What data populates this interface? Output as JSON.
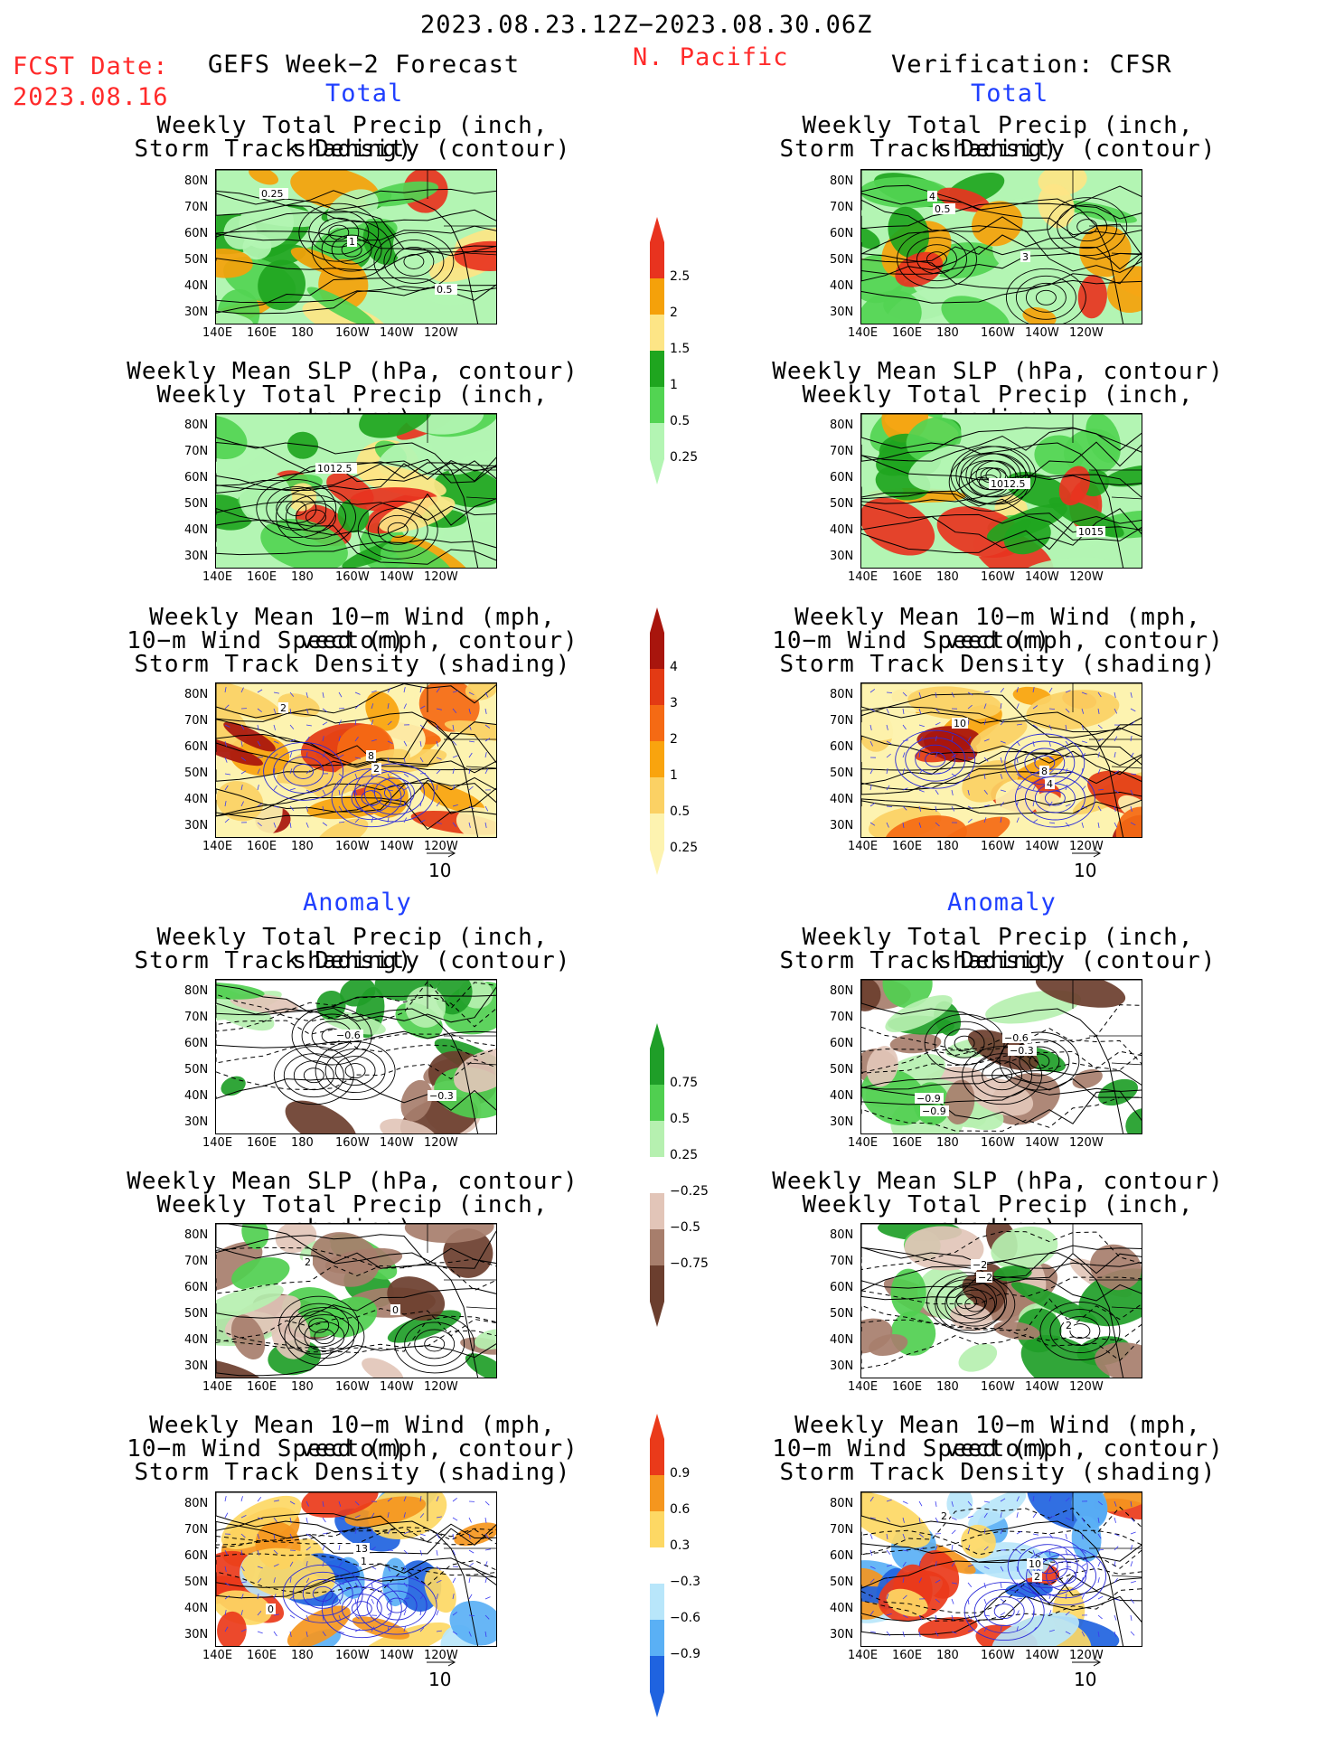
{
  "header": {
    "date_range": "2023.08.23.12Z−2023.08.30.06Z",
    "fcst_label": "FCST Date:",
    "fcst_date": "2023.08.16",
    "left_title": "GEFS Week−2 Forecast",
    "region": "N. Pacific",
    "right_title": "Verification: CFSR"
  },
  "sections": {
    "total": "Total",
    "anomaly": "Anomaly"
  },
  "axes": {
    "lat_labels": [
      "80N",
      "70N",
      "60N",
      "50N",
      "40N",
      "30N"
    ],
    "lon_labels": [
      "140E",
      "160E",
      "180",
      "160W",
      "140W",
      "120W"
    ]
  },
  "vector_ref": "10",
  "panels": [
    {
      "id": "fc-total-precip",
      "title": [
        "Weekly Total Precip (inch, shading)",
        "Storm Track Density (contour)"
      ],
      "scheme": "precip",
      "labels": [
        "0.25",
        "1",
        "0.5"
      ]
    },
    {
      "id": "ob-total-precip",
      "title": [
        "Weekly Total Precip (inch, shading)",
        "Storm Track Density (contour)"
      ],
      "scheme": "precip",
      "labels": [
        "0.5",
        "3",
        "4"
      ]
    },
    {
      "id": "fc-total-slp",
      "title": [
        "Weekly Mean SLP (hPa, contour)",
        "Weekly Total Precip (inch, shading)"
      ],
      "scheme": "precip",
      "labels": [
        "1012.5"
      ]
    },
    {
      "id": "ob-total-slp",
      "title": [
        "Weekly Mean SLP (hPa, contour)",
        "Weekly Total Precip (inch, shading)"
      ],
      "scheme": "precip",
      "labels": [
        "1012.5",
        "1015"
      ]
    },
    {
      "id": "fc-total-wind",
      "title": [
        "Weekly Mean 10−m Wind (mph, vector)",
        "10−m Wind Speed (mph, contour)",
        "Storm Track Density (shading)"
      ],
      "scheme": "std",
      "labels": [
        "2",
        "2",
        "8"
      ]
    },
    {
      "id": "ob-total-wind",
      "title": [
        "Weekly Mean 10−m Wind (mph, vector)",
        "10−m Wind Speed (mph, contour)",
        "Storm Track Density (shading)"
      ],
      "scheme": "std",
      "labels": [
        "4",
        "10",
        "8"
      ]
    },
    {
      "id": "fc-anom-precip",
      "title": [
        "Weekly Total Precip (inch, shading)",
        "Storm Track Density (contour)"
      ],
      "scheme": "anom",
      "labels": [
        "−0.3",
        "−0.6"
      ]
    },
    {
      "id": "ob-anom-precip",
      "title": [
        "Weekly Total Precip (inch, shading)",
        "Storm Track Density (contour)"
      ],
      "scheme": "anom",
      "labels": [
        "−0.9",
        "−0.3",
        "−0.9",
        "−0.6"
      ]
    },
    {
      "id": "fc-anom-slp",
      "title": [
        "Weekly Mean SLP (hPa, contour)",
        "Weekly Total Precip (inch, shading)"
      ],
      "scheme": "anom",
      "labels": [
        "2",
        "0"
      ]
    },
    {
      "id": "ob-anom-slp",
      "title": [
        "Weekly Mean SLP (hPa, contour)",
        "Weekly Total Precip (inch, shading)"
      ],
      "scheme": "anom",
      "labels": [
        "−2",
        "2",
        "−2"
      ]
    },
    {
      "id": "fc-anom-wind",
      "title": [
        "Weekly Mean 10−m Wind (mph, vector)",
        "10−m Wind Speed (mph, contour)",
        "Storm Track Density (shading)"
      ],
      "scheme": "stdanom",
      "labels": [
        "1",
        "0",
        "13"
      ]
    },
    {
      "id": "ob-anom-wind",
      "title": [
        "Weekly Mean 10−m Wind (mph, vector)",
        "10−m Wind Speed (mph, contour)",
        "Storm Track Density (shading)"
      ],
      "scheme": "stdanom",
      "labels": [
        "2",
        "2",
        "10"
      ]
    }
  ],
  "colorbars": [
    {
      "id": "precip",
      "labels": [
        "2.5",
        "2",
        "1.5",
        "1",
        "0.5",
        "0.25"
      ],
      "colors": [
        "#e8331f",
        "#f5a10a",
        "#fde586",
        "#1fa51f",
        "#52d452",
        "#b3f5b3"
      ]
    },
    {
      "id": "std",
      "labels": [
        "4",
        "3",
        "2",
        "1",
        "0.5",
        "0.25"
      ],
      "colors": [
        "#a8150d",
        "#e33a14",
        "#f56a14",
        "#f9a40e",
        "#fbd164",
        "#fdf3b0"
      ]
    },
    {
      "id": "anom",
      "labels": [
        "0.75",
        "0.5",
        "0.25",
        "−0.25",
        "−0.5",
        "−0.75"
      ],
      "colors": [
        "#1f9e28",
        "#50cf50",
        "#b6f0b0",
        "#ffffff",
        "#e2c5b8",
        "#a77e6c",
        "#6b3e2e"
      ]
    },
    {
      "id": "stdanom",
      "labels": [
        "0.9",
        "0.6",
        "0.3",
        "−0.3",
        "−0.6",
        "−0.9"
      ],
      "colors": [
        "#ea3a1a",
        "#f5961e",
        "#fdd864",
        "#ffffff",
        "#b8e6fa",
        "#5ab0f5",
        "#1f63e0"
      ]
    }
  ],
  "chart_data": [
    {
      "type": "heatmap",
      "title": "Weekly Total Precip (inch, shading) / Storm Track Density (contour)",
      "source": "GEFS Week-2 Forecast",
      "section": "Total",
      "colorbar": [
        "0.25",
        "0.5",
        "1",
        "1.5",
        "2",
        "2.5"
      ]
    },
    {
      "type": "heatmap",
      "title": "Weekly Total Precip (inch, shading) / Storm Track Density (contour)",
      "source": "Verification: CFSR",
      "section": "Total",
      "colorbar": [
        "0.25",
        "0.5",
        "1",
        "1.5",
        "2",
        "2.5"
      ]
    },
    {
      "type": "heatmap",
      "title": "Weekly Mean SLP (hPa, contour) / Weekly Total Precip (inch, shading)",
      "source": "GEFS Week-2 Forecast",
      "section": "Total"
    },
    {
      "type": "heatmap",
      "title": "Weekly Mean SLP (hPa, contour) / Weekly Total Precip (inch, shading)",
      "source": "Verification: CFSR",
      "section": "Total"
    },
    {
      "type": "heatmap",
      "title": "Weekly Mean 10-m Wind / 10-m Wind Speed / Storm Track Density",
      "source": "GEFS Week-2 Forecast",
      "section": "Total",
      "colorbar": [
        "0.25",
        "0.5",
        "1",
        "2",
        "3",
        "4"
      ]
    },
    {
      "type": "heatmap",
      "title": "Weekly Mean 10-m Wind / 10-m Wind Speed / Storm Track Density",
      "source": "Verification: CFSR",
      "section": "Total",
      "colorbar": [
        "0.25",
        "0.5",
        "1",
        "2",
        "3",
        "4"
      ]
    },
    {
      "type": "heatmap",
      "title": "Weekly Total Precip / Storm Track Density",
      "source": "GEFS Week-2 Forecast",
      "section": "Anomaly",
      "colorbar": [
        "-0.75",
        "-0.5",
        "-0.25",
        "0.25",
        "0.5",
        "0.75"
      ]
    },
    {
      "type": "heatmap",
      "title": "Weekly Total Precip / Storm Track Density",
      "source": "Verification: CFSR",
      "section": "Anomaly"
    },
    {
      "type": "heatmap",
      "title": "Weekly Mean SLP / Weekly Total Precip",
      "source": "GEFS Week-2 Forecast",
      "section": "Anomaly"
    },
    {
      "type": "heatmap",
      "title": "Weekly Mean SLP / Weekly Total Precip",
      "source": "Verification: CFSR",
      "section": "Anomaly"
    },
    {
      "type": "heatmap",
      "title": "Weekly Mean 10-m Wind / 10-m Wind Speed / Storm Track Density",
      "source": "GEFS Week-2 Forecast",
      "section": "Anomaly",
      "colorbar": [
        "-0.9",
        "-0.6",
        "-0.3",
        "0.3",
        "0.6",
        "0.9"
      ]
    },
    {
      "type": "heatmap",
      "title": "Weekly Mean 10-m Wind / 10-m Wind Speed / Storm Track Density",
      "source": "Verification: CFSR",
      "section": "Anomaly",
      "colorbar": [
        "-0.9",
        "-0.6",
        "-0.3",
        "0.3",
        "0.6",
        "0.9"
      ]
    }
  ]
}
